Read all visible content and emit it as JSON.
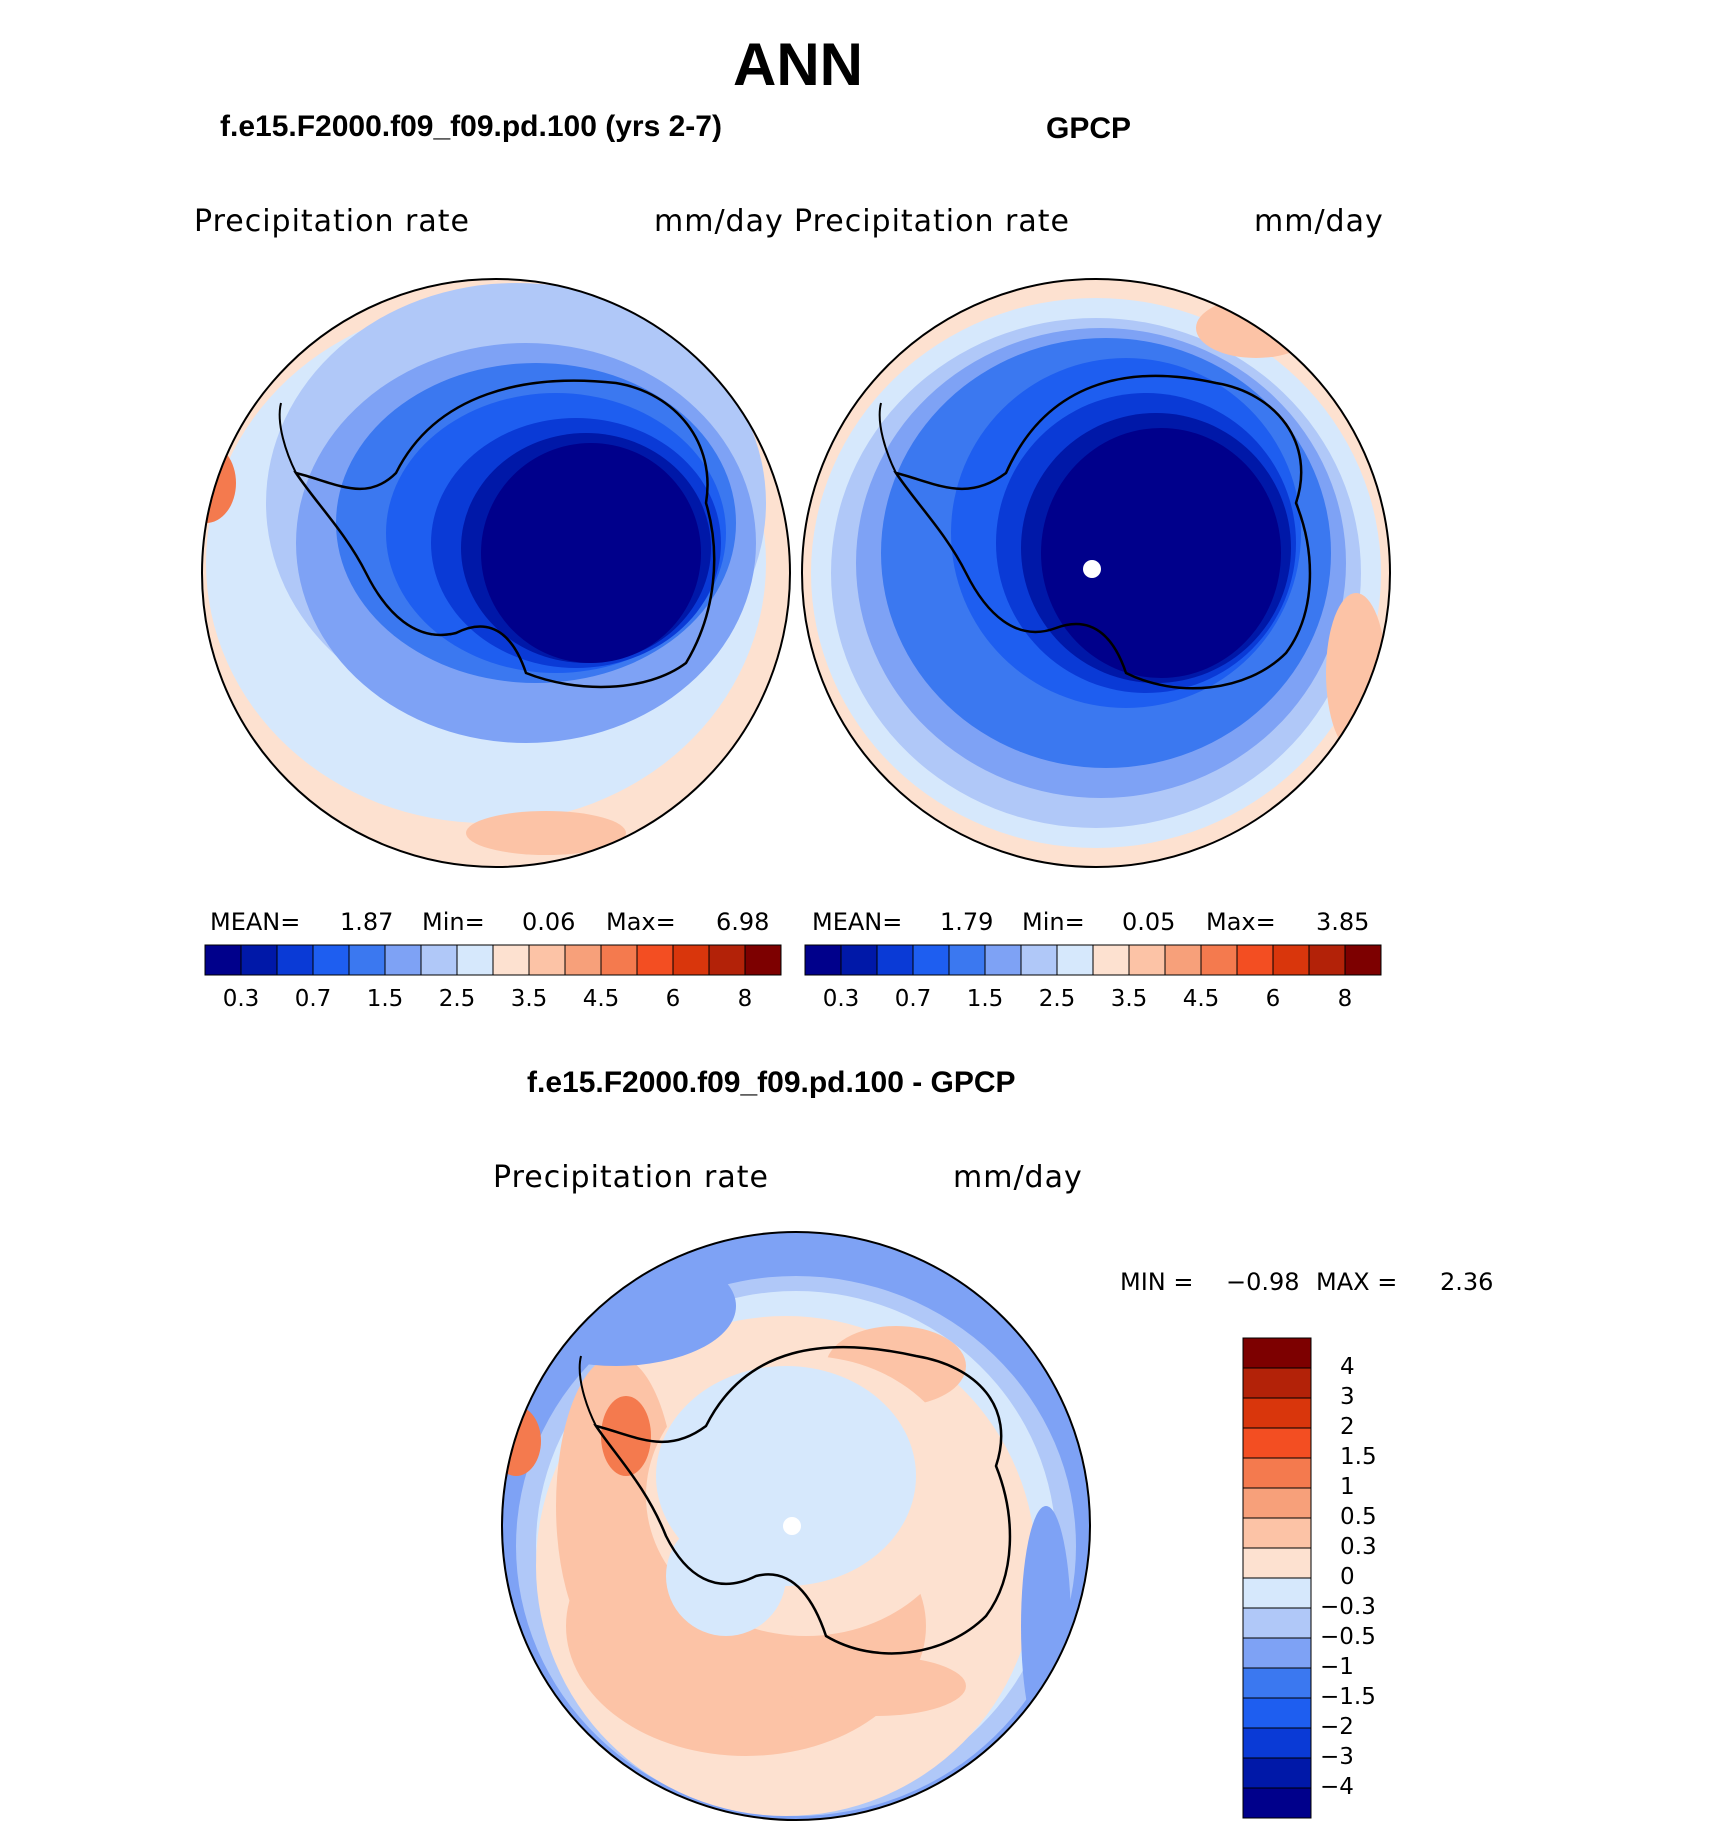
{
  "figure": {
    "season": "ANN",
    "colors": {
      "ocean_light_blue": "#d3e8fb",
      "ice_dark": "#00008b",
      "warm_peach": "#fde1d0"
    }
  },
  "panels": [
    {
      "id": "model",
      "title": "f.e15.F2000.f09_f09.pd.100 (yrs 2-7)",
      "variable": "Precipitation  rate",
      "units": "mm/day",
      "stats": {
        "mean_label": "MEAN=",
        "mean": "1.87",
        "min_label": "Min=",
        "min": "0.06",
        "max_label": "Max=",
        "max": "6.98"
      }
    },
    {
      "id": "obs",
      "title": "GPCP",
      "variable": "Precipitation  rate",
      "units": "mm/day",
      "stats": {
        "mean_label": "MEAN=",
        "mean": "1.79",
        "min_label": "Min=",
        "min": "0.05",
        "max_label": "Max=",
        "max": "3.85"
      }
    }
  ],
  "abs_colorbar": {
    "colors": [
      "#00008b",
      "#0018a8",
      "#0a3ad6",
      "#1e5ef0",
      "#3b78f0",
      "#7ea2f5",
      "#b0c8f8",
      "#d6e8fc",
      "#fde1d0",
      "#fcc3a6",
      "#f7a07a",
      "#f47a4e",
      "#f34e22",
      "#d9360c",
      "#b32208",
      "#7d0000"
    ],
    "tick_labels": [
      "0.3",
      "0.7",
      "1.5",
      "2.5",
      "3.5",
      "4.5",
      "6",
      "8"
    ]
  },
  "difference": {
    "title": "f.e15.F2000.f09_f09.pd.100 - GPCP",
    "variable": "Precipitation  rate",
    "units": "mm/day",
    "stats": {
      "min_label": "MIN =",
      "min": "−0.98",
      "max_label": "MAX =",
      "max": "2.36"
    },
    "colorbar": {
      "colors": [
        "#00008b",
        "#0018a8",
        "#0a3ad6",
        "#1e5ef0",
        "#3b78f0",
        "#7ea2f5",
        "#b0c8f8",
        "#d6e8fc",
        "#fde1d0",
        "#fcc3a6",
        "#f7a07a",
        "#f47a4e",
        "#f34e22",
        "#d9360c",
        "#b32208",
        "#7d0000"
      ],
      "tick_labels": [
        "4",
        "3",
        "2",
        "1.5",
        "1",
        "0.5",
        "0.3",
        "0",
        "−0.3",
        "−0.5",
        "−1",
        "−1.5",
        "−2",
        "−3",
        "−4"
      ]
    }
  }
}
